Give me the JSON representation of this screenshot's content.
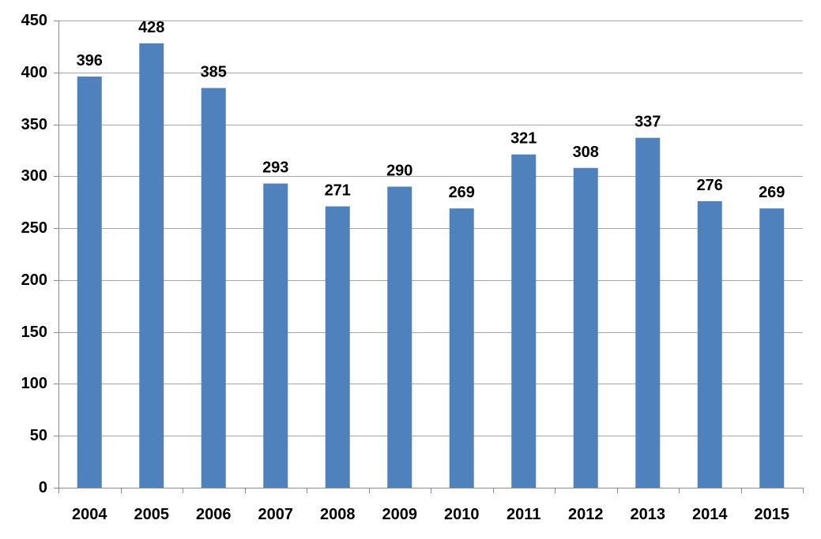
{
  "chart_data": {
    "type": "bar",
    "title": "",
    "xlabel": "",
    "ylabel": "",
    "categories": [
      "2004",
      "2005",
      "2006",
      "2007",
      "2008",
      "2009",
      "2010",
      "2011",
      "2012",
      "2013",
      "2014",
      "2015"
    ],
    "values": [
      396,
      428,
      385,
      293,
      271,
      290,
      269,
      321,
      308,
      337,
      276,
      269
    ],
    "data_labels": [
      "396",
      "428",
      "385",
      "293",
      "271",
      "290",
      "269",
      "321",
      "308",
      "337",
      "276",
      "269"
    ],
    "ylim": [
      0,
      450
    ],
    "yticks": [
      0,
      50,
      100,
      150,
      200,
      250,
      300,
      350,
      400,
      450
    ],
    "ytick_labels": [
      "0",
      "50",
      "100",
      "150",
      "200",
      "250",
      "300",
      "350",
      "400",
      "450"
    ],
    "grid": true,
    "legend": "none",
    "bar_color": "#4f81bd"
  }
}
